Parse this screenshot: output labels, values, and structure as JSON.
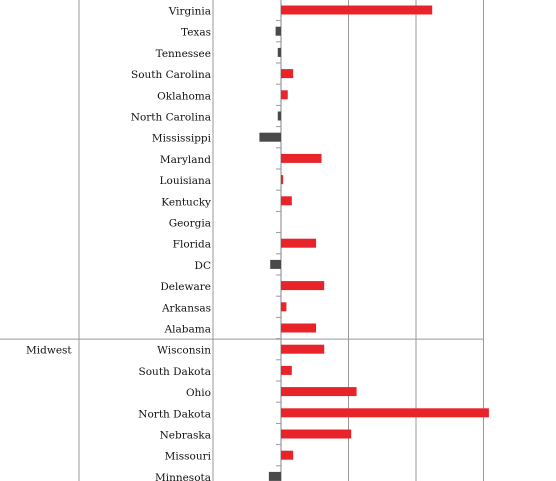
{
  "chart_data": {
    "type": "bar",
    "orientation": "horizontal",
    "title": "",
    "xlabel": "",
    "ylabel": "",
    "xlim": [
      -1.5,
      7.5
    ],
    "gridlines_at": [
      0,
      2.5,
      5,
      7.5
    ],
    "grid": true,
    "legend": "none",
    "groups": [
      {
        "name": "",
        "rows": [
          {
            "label": "Virginia",
            "value": 5.6
          },
          {
            "label": "Texas",
            "value": -0.2
          },
          {
            "label": "Tennessee",
            "value": -0.12
          },
          {
            "label": "South Carolina",
            "value": 0.45
          },
          {
            "label": "Oklahoma",
            "value": 0.25
          },
          {
            "label": "North Carolina",
            "value": -0.12
          },
          {
            "label": "Mississippi",
            "value": -0.8
          },
          {
            "label": "Maryland",
            "value": 1.5
          },
          {
            "label": "Louisiana",
            "value": 0.08
          },
          {
            "label": "Kentucky",
            "value": 0.4
          },
          {
            "label": "Georgia",
            "value": 0.0
          },
          {
            "label": "Florida",
            "value": 1.3
          },
          {
            "label": "DC",
            "value": -0.4
          },
          {
            "label": "Deleware",
            "value": 1.6
          },
          {
            "label": "Arkansas",
            "value": 0.2
          },
          {
            "label": "Alabama",
            "value": 1.3
          }
        ]
      },
      {
        "name": "Midwest",
        "rows": [
          {
            "label": "Wisconsin",
            "value": 1.6
          },
          {
            "label": "South Dakota",
            "value": 0.4
          },
          {
            "label": "Ohio",
            "value": 2.8
          },
          {
            "label": "North Dakota",
            "value": 7.7
          },
          {
            "label": "Nebraska",
            "value": 2.6
          },
          {
            "label": "Missouri",
            "value": 0.45
          },
          {
            "label": "Minnesota",
            "value": -0.45
          }
        ]
      }
    ],
    "colors": {
      "positive": "#e8232a",
      "negative": "#4a4a4a",
      "grid": "#999999"
    }
  }
}
